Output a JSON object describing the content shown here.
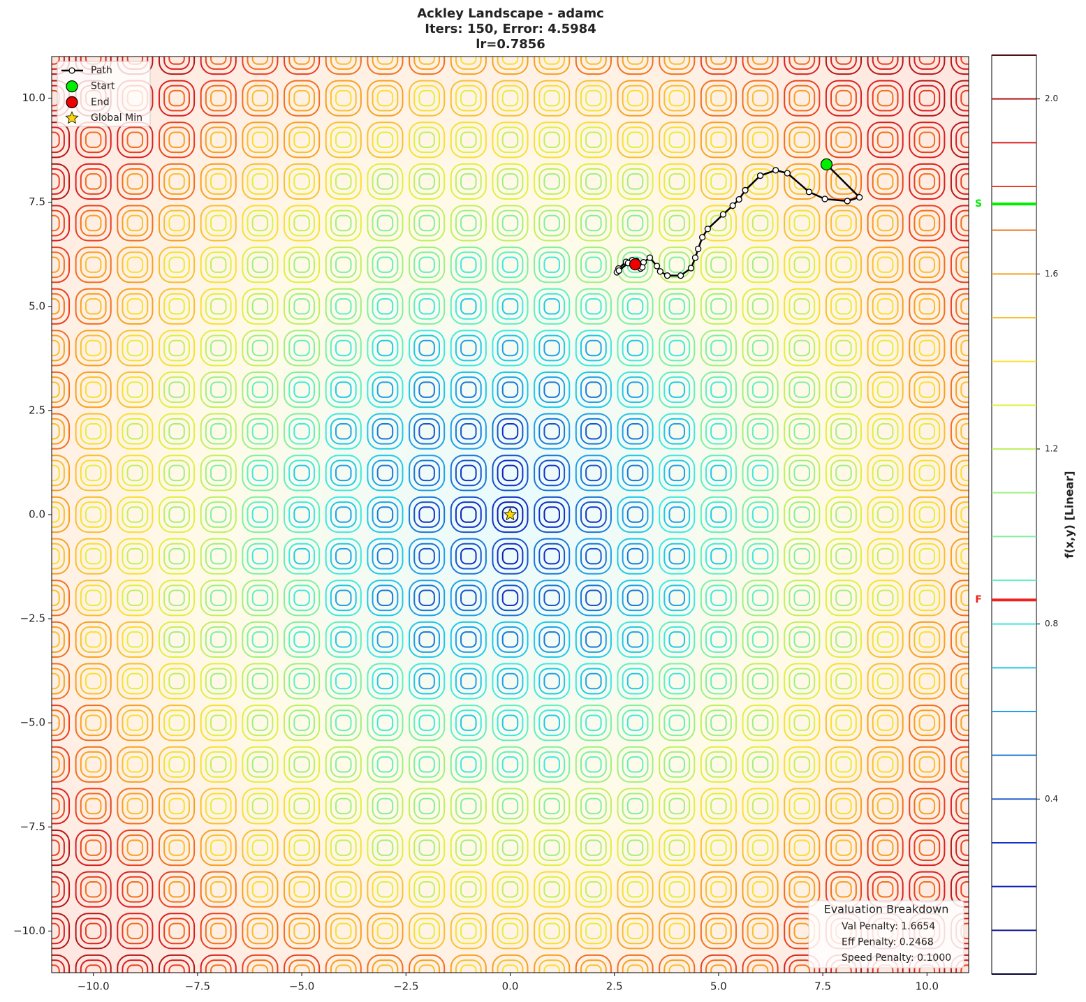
{
  "chart_data": {
    "type": "contour",
    "title": [
      "Ackley Landscape - adamc",
      "Iters: 150, Error: 4.5984",
      "lr=0.7856"
    ],
    "xlim": [
      -11,
      11
    ],
    "ylim": [
      -11,
      11
    ],
    "xticks": [
      {
        "value": -10,
        "label": "−10.0"
      },
      {
        "value": -7.5,
        "label": "−7.5"
      },
      {
        "value": -5,
        "label": "−5.0"
      },
      {
        "value": -2.5,
        "label": "−2.5"
      },
      {
        "value": 0,
        "label": "0.0"
      },
      {
        "value": 2.5,
        "label": "2.5"
      },
      {
        "value": 5,
        "label": "5.0"
      },
      {
        "value": 7.5,
        "label": "7.5"
      },
      {
        "value": 10,
        "label": "10.0"
      }
    ],
    "yticks": [
      {
        "value": -10,
        "label": "−10.0"
      },
      {
        "value": -7.5,
        "label": "−7.5"
      },
      {
        "value": -5,
        "label": "−5.0"
      },
      {
        "value": -2.5,
        "label": "−2.5"
      },
      {
        "value": 0,
        "label": "0.0"
      },
      {
        "value": 2.5,
        "label": "2.5"
      },
      {
        "value": 5,
        "label": "5.0"
      },
      {
        "value": 7.5,
        "label": "7.5"
      },
      {
        "value": 10,
        "label": "10.0"
      }
    ],
    "series": [
      {
        "name": "Path",
        "color": "#000000",
        "marker": "line",
        "x": [
          7.59,
          8.38,
          8.09,
          7.55,
          7.17,
          6.65,
          6.37,
          6.0,
          5.64,
          5.49,
          5.34,
          5.11,
          4.74,
          4.61,
          4.51,
          4.44,
          4.34,
          4.09,
          3.77,
          3.6,
          3.52,
          3.35,
          3.2,
          3.13,
          2.93,
          2.78,
          2.6,
          2.56,
          2.61,
          2.83,
          3.03,
          3.17,
          3.0
        ],
        "y": [
          8.41,
          7.62,
          7.53,
          7.58,
          7.75,
          8.2,
          8.27,
          8.14,
          7.79,
          7.57,
          7.42,
          7.21,
          6.86,
          6.66,
          6.38,
          6.17,
          5.92,
          5.74,
          5.74,
          5.84,
          5.97,
          6.17,
          6.06,
          5.91,
          6.11,
          6.07,
          5.91,
          5.82,
          5.86,
          6.04,
          6.09,
          5.94,
          6.01
        ]
      },
      {
        "name": "Start",
        "color": "#00ee00",
        "marker": "circle",
        "x": [
          7.59
        ],
        "y": [
          8.41
        ]
      },
      {
        "name": "End",
        "color": "#ee0000",
        "marker": "circle",
        "x": [
          3.0
        ],
        "y": [
          6.01
        ]
      },
      {
        "name": "Global Min",
        "color": "#ffd700",
        "marker": "star",
        "x": [
          0
        ],
        "y": [
          0
        ]
      }
    ],
    "legend": "upper left",
    "colorbar": {
      "label": "f(x,y) [Linear]",
      "ylim": [
        0,
        2.1
      ],
      "yticks": [
        {
          "value": 0.4,
          "label": "0.4"
        },
        {
          "value": 0.8,
          "label": "0.8"
        },
        {
          "value": 1.2,
          "label": "1.2"
        },
        {
          "value": 1.6,
          "label": "1.6"
        },
        {
          "value": 2.0,
          "label": "2.0"
        }
      ],
      "levels": [
        0,
        0.1,
        0.2,
        0.3,
        0.4,
        0.5,
        0.6,
        0.7,
        0.8,
        0.9,
        1.0,
        1.1,
        1.2,
        1.3,
        1.4,
        1.5,
        1.6,
        1.7,
        1.8,
        1.9,
        2.0,
        2.1
      ],
      "level_colors": [
        "#000033",
        "#101590",
        "#1020b0",
        "#1530c8",
        "#1a55c8",
        "#1a78d8",
        "#20a0e8",
        "#20c8e8",
        "#40e8e0",
        "#60f0c0",
        "#80f0a0",
        "#a0f080",
        "#c0f060",
        "#e0f040",
        "#f8e030",
        "#f8c030",
        "#f8a020",
        "#f07020",
        "#e84020",
        "#d82020",
        "#b01818",
        "#501010"
      ],
      "markers": [
        {
          "label": "S",
          "value": 1.76,
          "color": "#00ee00"
        },
        {
          "label": "F",
          "value": 0.855,
          "color": "#ee2020"
        }
      ]
    },
    "annotation": {
      "title": "Evaluation Breakdown",
      "lines": [
        "Val Penalty: 1.6654",
        "Eff Penalty: 0.2468",
        "Speed Penalty: 0.1000"
      ]
    }
  }
}
